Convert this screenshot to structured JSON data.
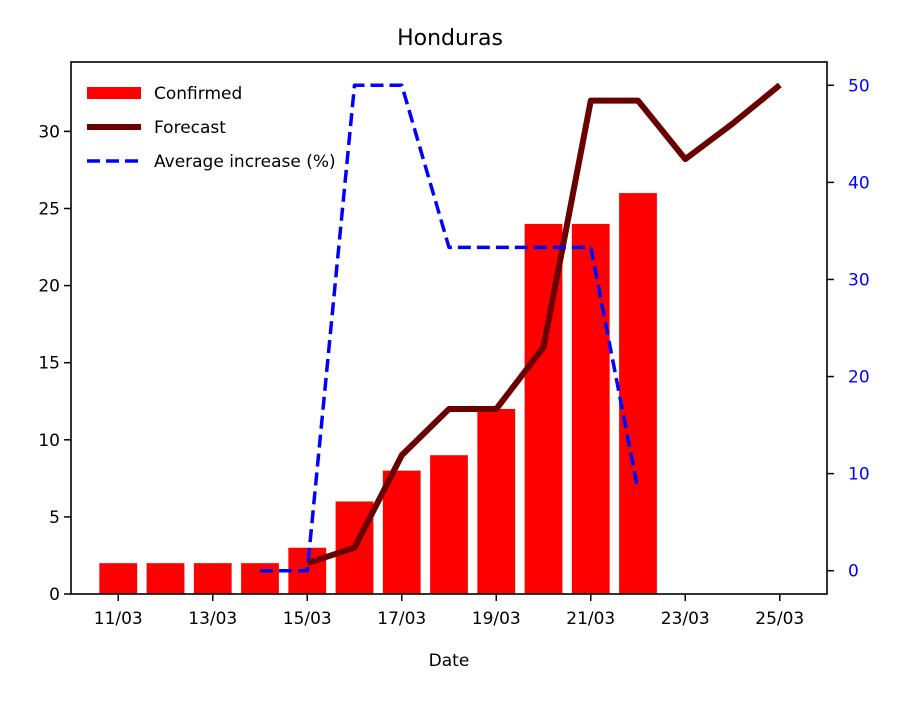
{
  "chart_data": {
    "type": "bar",
    "title": "Honduras",
    "xlabel": "Date",
    "ylabel": "",
    "ylabel_right": "",
    "x_ticks": [
      "11/03",
      "13/03",
      "15/03",
      "17/03",
      "19/03",
      "21/03",
      "23/03",
      "25/03"
    ],
    "y_ticks": [
      "0",
      "5",
      "10",
      "15",
      "20",
      "25",
      "30"
    ],
    "y2_ticks": [
      "0",
      "10",
      "20",
      "30",
      "40",
      "50"
    ],
    "xlim": [
      "10/03",
      "26/03"
    ],
    "ylim": [
      0,
      34.5
    ],
    "y2lim": [
      -2.4,
      52.4
    ],
    "legend_position": "top-left",
    "grid": false,
    "colors": {
      "confirmed": "#ff0000",
      "forecast": "#6b0000",
      "average": "#0000ff",
      "right_axis": "#0000ff"
    },
    "series": [
      {
        "name": "Confirmed",
        "kind": "bar",
        "axis": "left",
        "x": [
          "11/03",
          "12/03",
          "13/03",
          "14/03",
          "15/03",
          "16/03",
          "17/03",
          "18/03",
          "19/03",
          "20/03",
          "21/03",
          "22/03"
        ],
        "values": [
          2,
          2,
          2,
          2,
          3,
          6,
          8,
          9,
          12,
          24,
          24,
          26
        ]
      },
      {
        "name": "Forecast",
        "kind": "line",
        "axis": "left",
        "x": [
          "15/03",
          "16/03",
          "17/03",
          "18/03",
          "19/03",
          "20/03",
          "21/03",
          "22/03",
          "23/03",
          "24/03",
          "25/03"
        ],
        "values": [
          2,
          3,
          9,
          12,
          12,
          16,
          32,
          32,
          28.2,
          30.5,
          33
        ]
      },
      {
        "name": "Average increase (%)",
        "kind": "line",
        "axis": "right",
        "style": "dashed",
        "x": [
          "14/03",
          "15/03",
          "16/03",
          "17/03",
          "18/03",
          "19/03",
          "20/03",
          "21/03",
          "22/03"
        ],
        "values": [
          0,
          0,
          50,
          50,
          33.3,
          33.3,
          33.3,
          33.3,
          8.3
        ]
      }
    ]
  }
}
